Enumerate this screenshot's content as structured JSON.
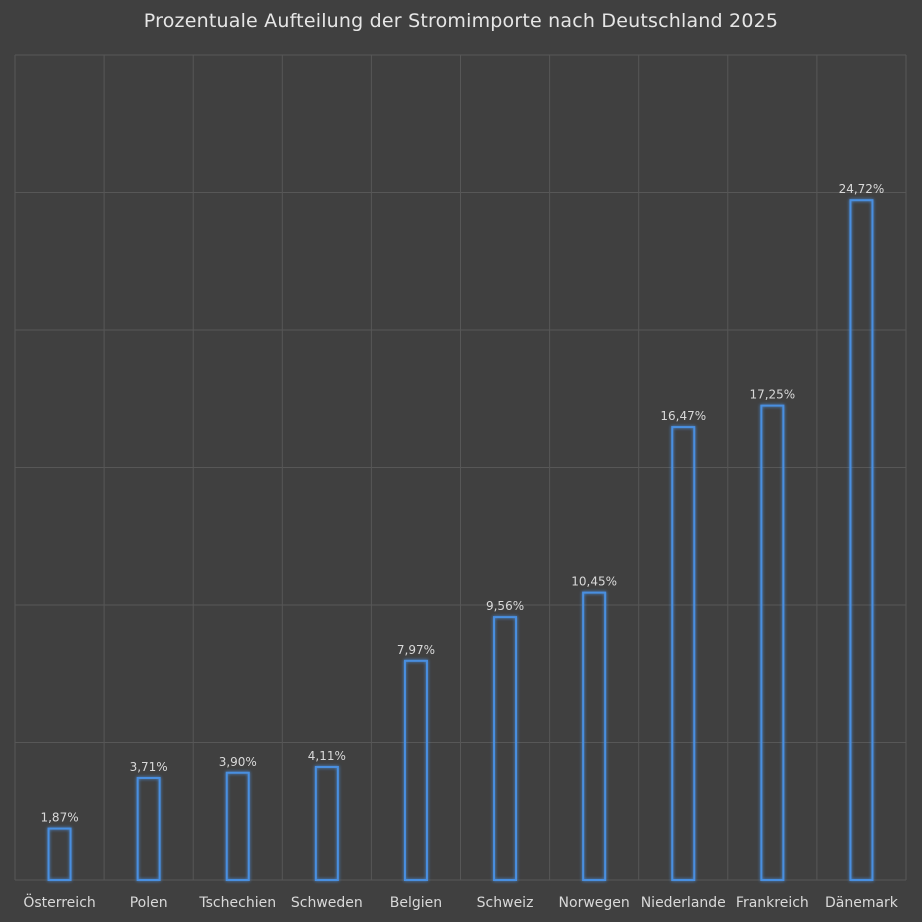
{
  "chart_data": {
    "type": "bar",
    "title": "Prozentuale Aufteilung der Stromimporte nach Deutschland 2025",
    "categories": [
      "Österreich",
      "Polen",
      "Tschechien",
      "Schweden",
      "Belgien",
      "Schweiz",
      "Norwegen",
      "Niederlande",
      "Frankreich",
      "Dänemark"
    ],
    "values": [
      1.87,
      3.71,
      3.9,
      4.11,
      7.97,
      9.56,
      10.45,
      16.47,
      17.25,
      24.72
    ],
    "data_labels": [
      "1,87%",
      "3,71%",
      "3,90%",
      "4,11%",
      "7,97%",
      "9,56%",
      "10,45%",
      "16,47%",
      "17,25%",
      "24,72%"
    ],
    "ylim": [
      0,
      30
    ],
    "xlabel": "",
    "ylabel": "",
    "grid": true,
    "legend": "none",
    "colors": {
      "background": "#404040",
      "grid": "#575757",
      "bar_stroke": "#4a8fe0",
      "bar_glow": "#2f6fc0",
      "text": "#d9d9d9",
      "title": "#e6e6e6"
    }
  }
}
